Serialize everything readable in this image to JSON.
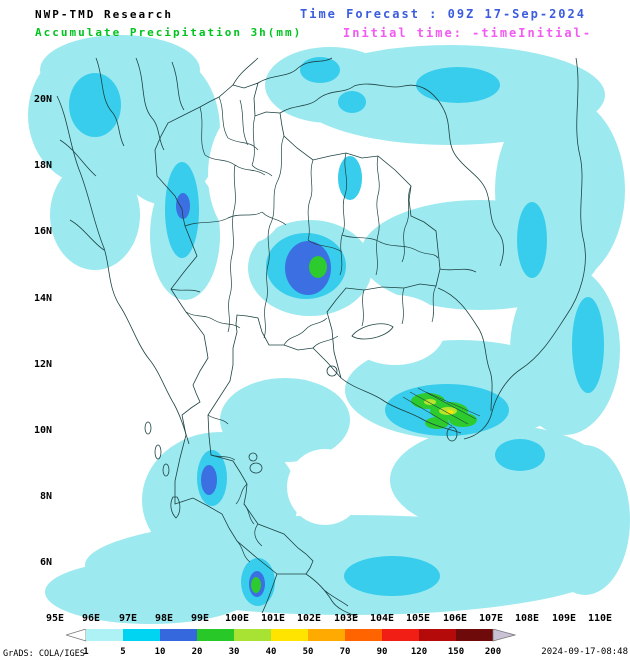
{
  "header": {
    "product": "NWP-TMD Research",
    "variable": "Accumulate Precipitation 3h(mm)",
    "forecast": "Time Forecast : 09Z 17-Sep-2024",
    "initial": "Initial time: -timeInitial-",
    "colors": {
      "product": "#000000",
      "variable": "#00c31e",
      "forecast": "#3c5ce0",
      "initial": "#f25af2"
    }
  },
  "map": {
    "lat_ticks": [
      "20N",
      "18N",
      "16N",
      "14N",
      "12N",
      "10N",
      "8N",
      "6N"
    ],
    "lon_ticks": [
      "95E",
      "96E",
      "97E",
      "98E",
      "99E",
      "100E",
      "101E",
      "102E",
      "103E",
      "104E",
      "105E",
      "106E",
      "107E",
      "108E",
      "109E",
      "110E"
    ],
    "shading_levels_mm": [
      1,
      5,
      10,
      20,
      30,
      40,
      50,
      70,
      90,
      120,
      150,
      200
    ]
  },
  "legend": {
    "values": [
      "1",
      "5",
      "10",
      "20",
      "30",
      "40",
      "50",
      "70",
      "90",
      "120",
      "150",
      "200"
    ],
    "box_colors": [
      "#aef2f6",
      "#00d4f0",
      "#3468dc",
      "#28c828",
      "#a8e232",
      "#ffe400",
      "#ffaa00",
      "#ff6400",
      "#f01e14",
      "#b40a0a",
      "#6e0a0a"
    ],
    "below_min_color": "#ffffff",
    "above_max_color": "#c9c2d4"
  },
  "footer": {
    "credit": "GrADS: COLA/IGES",
    "timestamp": "2024-09-17-08:48"
  }
}
